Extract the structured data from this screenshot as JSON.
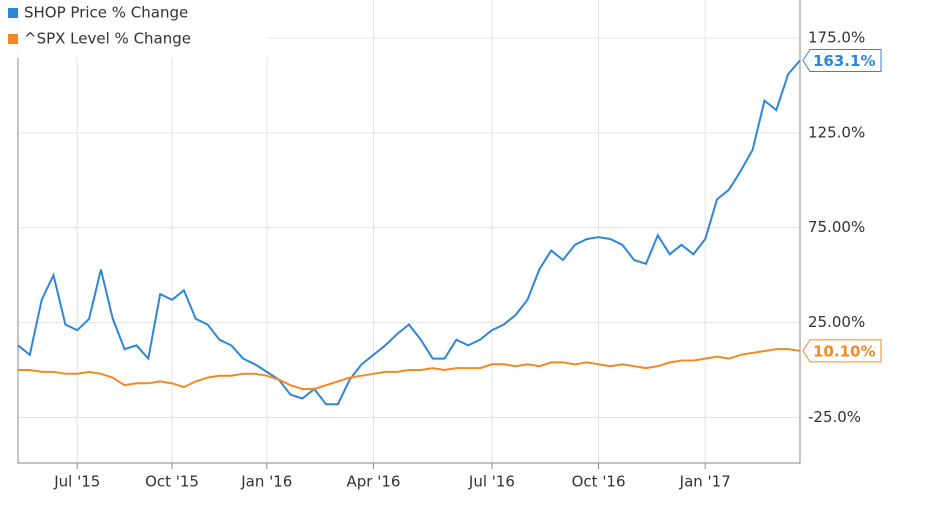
{
  "chart_data": {
    "type": "line",
    "categories": [
      null,
      null,
      null,
      null,
      null,
      "Jul '15",
      null,
      null,
      null,
      null,
      null,
      null,
      null,
      "Oct '15",
      null,
      null,
      null,
      null,
      null,
      null,
      null,
      "Jan '16",
      null,
      null,
      null,
      null,
      null,
      null,
      null,
      null,
      "Apr '16",
      null,
      null,
      null,
      null,
      null,
      null,
      null,
      null,
      null,
      "Jul '16",
      null,
      null,
      null,
      null,
      null,
      null,
      null,
      null,
      "Oct '16",
      null,
      null,
      null,
      null,
      null,
      null,
      null,
      null,
      "Jan '17",
      null,
      null,
      null,
      null,
      null,
      null,
      null,
      null
    ],
    "series": [
      {
        "name": "SHOP Price % Change",
        "color": "#2e86d9",
        "values": [
          13,
          8,
          37,
          50,
          24,
          21,
          27,
          53,
          27,
          11,
          13,
          6,
          40,
          37,
          42,
          27,
          24,
          16,
          13,
          6,
          3,
          -1,
          -5,
          -13,
          -15,
          -10,
          -18,
          -18,
          -5,
          3,
          8,
          13,
          19,
          24,
          16,
          6,
          6,
          16,
          13,
          16,
          21,
          24,
          29,
          37,
          53,
          63,
          58,
          66,
          69,
          70,
          69,
          66,
          58,
          56,
          71,
          61,
          66,
          61,
          69,
          90,
          95,
          105,
          116,
          142,
          137,
          156,
          163.1
        ],
        "value_labels": [
          null,
          null,
          null,
          null,
          null,
          null,
          null,
          null,
          null,
          null,
          null,
          null,
          null,
          null,
          null,
          null,
          null,
          null,
          null,
          null,
          null,
          null,
          null,
          null,
          null,
          null,
          null,
          null,
          null,
          null,
          null,
          null,
          null,
          null,
          null,
          null,
          null,
          null,
          null,
          null,
          null,
          null,
          null,
          null,
          null,
          null,
          null,
          null,
          null,
          null,
          null,
          null,
          null,
          null,
          null,
          null,
          null,
          null,
          null,
          null,
          null,
          null,
          null,
          null,
          null,
          null,
          "163.1%"
        ]
      },
      {
        "name": "^SPX Level % Change",
        "color": "#f5891f",
        "values": [
          0,
          0,
          -1,
          -1,
          -2,
          -2,
          -1,
          -2,
          -4,
          -8,
          -7,
          -7,
          -6,
          -7,
          -9,
          -6,
          -4,
          -3,
          -3,
          -2,
          -2,
          -3,
          -5,
          -8,
          -10,
          -10,
          -8,
          -6,
          -4,
          -3,
          -2,
          -1,
          -1,
          0,
          0,
          1,
          0,
          1,
          1,
          1,
          3,
          3,
          2,
          3,
          2,
          4,
          4,
          3,
          4,
          3,
          2,
          3,
          2,
          1,
          2,
          4,
          5,
          5,
          6,
          7,
          6,
          8,
          9,
          10,
          11,
          11,
          10.1
        ],
        "value_labels": [
          null,
          null,
          null,
          null,
          null,
          null,
          null,
          null,
          null,
          null,
          null,
          null,
          null,
          null,
          null,
          null,
          null,
          null,
          null,
          null,
          null,
          null,
          null,
          null,
          null,
          null,
          null,
          null,
          null,
          null,
          null,
          null,
          null,
          null,
          null,
          null,
          null,
          null,
          null,
          null,
          null,
          null,
          null,
          null,
          null,
          null,
          null,
          null,
          null,
          null,
          null,
          null,
          null,
          null,
          null,
          null,
          null,
          null,
          null,
          null,
          null,
          null,
          null,
          null,
          null,
          null,
          "10.10%"
        ]
      }
    ],
    "ylim": [
      -49,
      195
    ],
    "yticks": [
      {
        "value": 175,
        "label": "175.0%"
      },
      {
        "value": 125,
        "label": "125.0%"
      },
      {
        "value": 75,
        "label": "75.00%"
      },
      {
        "value": 25,
        "label": "25.00%"
      },
      {
        "value": -25,
        "label": "-25.0%"
      }
    ],
    "grid": true,
    "legend": "top-left"
  }
}
